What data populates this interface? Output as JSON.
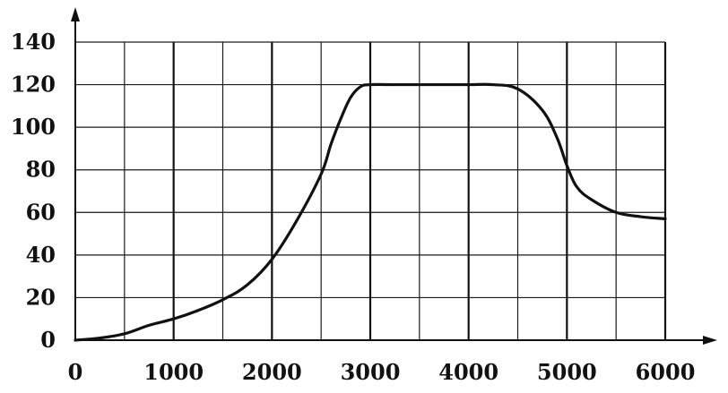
{
  "chart_data": {
    "type": "line",
    "title": "",
    "xlabel": "",
    "ylabel": "",
    "xlim": [
      0,
      6000
    ],
    "ylim": [
      0,
      140
    ],
    "grid": true,
    "x_ticks": [
      "0",
      "1000",
      "2000",
      "3000",
      "4000",
      "5000",
      "6000"
    ],
    "y_ticks": [
      "0",
      "20",
      "40",
      "60",
      "80",
      "100",
      "120",
      "140"
    ],
    "series": [
      {
        "x": [
          0,
          250,
          500,
          750,
          1000,
          1250,
          1500,
          1750,
          2000,
          2250,
          2500,
          2600,
          2700,
          2800,
          2900,
          3000,
          3250,
          3500,
          3750,
          4000,
          4250,
          4500,
          4750,
          4900,
          5000,
          5100,
          5250,
          5500,
          5750,
          6000
        ],
        "y": [
          0,
          1,
          3,
          7,
          10,
          14,
          19,
          26,
          38,
          56,
          78,
          92,
          104,
          114,
          119,
          120,
          120,
          120,
          120,
          120,
          120,
          118,
          108,
          95,
          82,
          72,
          66,
          60,
          58,
          57
        ]
      }
    ],
    "colors": {
      "line": "#111111",
      "grid": "#1a1a1a",
      "text": "#111111",
      "background": "#ffffff"
    }
  }
}
